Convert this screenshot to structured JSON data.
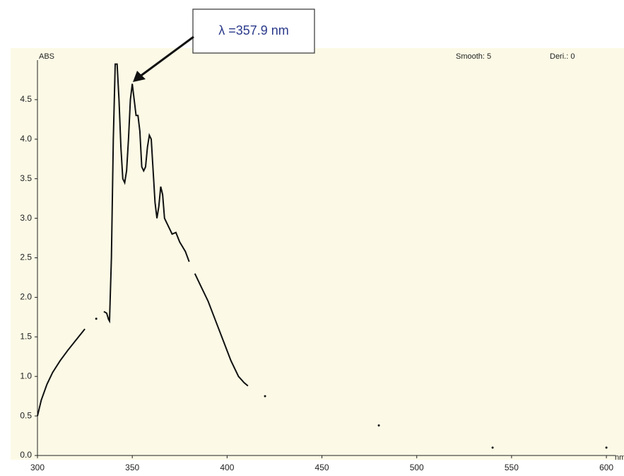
{
  "chart_data": {
    "type": "line",
    "y_label": "ABS",
    "x_label": "nm",
    "annotations": {
      "peak": "λ =357.9 nm",
      "smooth": "Smooth: 5",
      "deri": "Deri.: 0"
    },
    "xlim": [
      300,
      605
    ],
    "ylim": [
      0,
      5
    ],
    "xticks": [
      300,
      350,
      400,
      450,
      500,
      550,
      600
    ],
    "yticks": [
      {
        "value": 0,
        "label": "0.0"
      },
      0.5,
      {
        "value": 1,
        "label": "1.0"
      },
      1.5,
      {
        "value": 2,
        "label": "2.0"
      },
      2.5,
      {
        "value": 3,
        "label": "3.0"
      },
      3.5,
      {
        "value": 4,
        "label": "4.0"
      },
      4.5
    ],
    "series": [
      {
        "color": "#111111",
        "x": [
          300,
          302,
          305,
          308,
          312,
          316,
          320,
          325,
          328,
          331,
          333,
          335,
          336.5,
          337.5,
          338,
          339,
          340,
          341,
          342,
          343,
          344,
          345,
          346,
          347,
          348,
          349,
          350,
          351,
          352,
          353,
          354,
          355,
          356,
          357,
          358,
          359,
          360,
          361,
          362,
          363,
          364,
          365,
          366,
          367,
          368,
          370,
          371,
          373,
          375,
          378,
          380,
          381,
          383,
          386,
          390,
          394,
          398,
          402,
          406,
          409,
          411,
          415,
          420,
          450,
          480,
          510,
          540,
          570,
          600
        ],
        "values": [
          0.5,
          0.7,
          0.9,
          1.05,
          1.2,
          1.33,
          1.45,
          1.6,
          null,
          1.73,
          null,
          1.82,
          1.8,
          1.72,
          1.7,
          2.5,
          4.0,
          4.95,
          4.95,
          4.5,
          3.9,
          3.5,
          3.45,
          3.6,
          4.0,
          4.5,
          4.7,
          4.5,
          4.3,
          4.3,
          4.1,
          3.65,
          3.6,
          3.65,
          3.9,
          4.05,
          4.0,
          3.6,
          3.2,
          3.0,
          3.15,
          3.4,
          3.3,
          3.0,
          2.95,
          2.85,
          2.8,
          2.82,
          2.7,
          2.58,
          2.45,
          null,
          2.3,
          2.15,
          1.95,
          1.7,
          1.45,
          1.2,
          1.0,
          0.92,
          0.88,
          null,
          0.75,
          null,
          0.38,
          null,
          0.1,
          null,
          0.1
        ]
      }
    ]
  }
}
